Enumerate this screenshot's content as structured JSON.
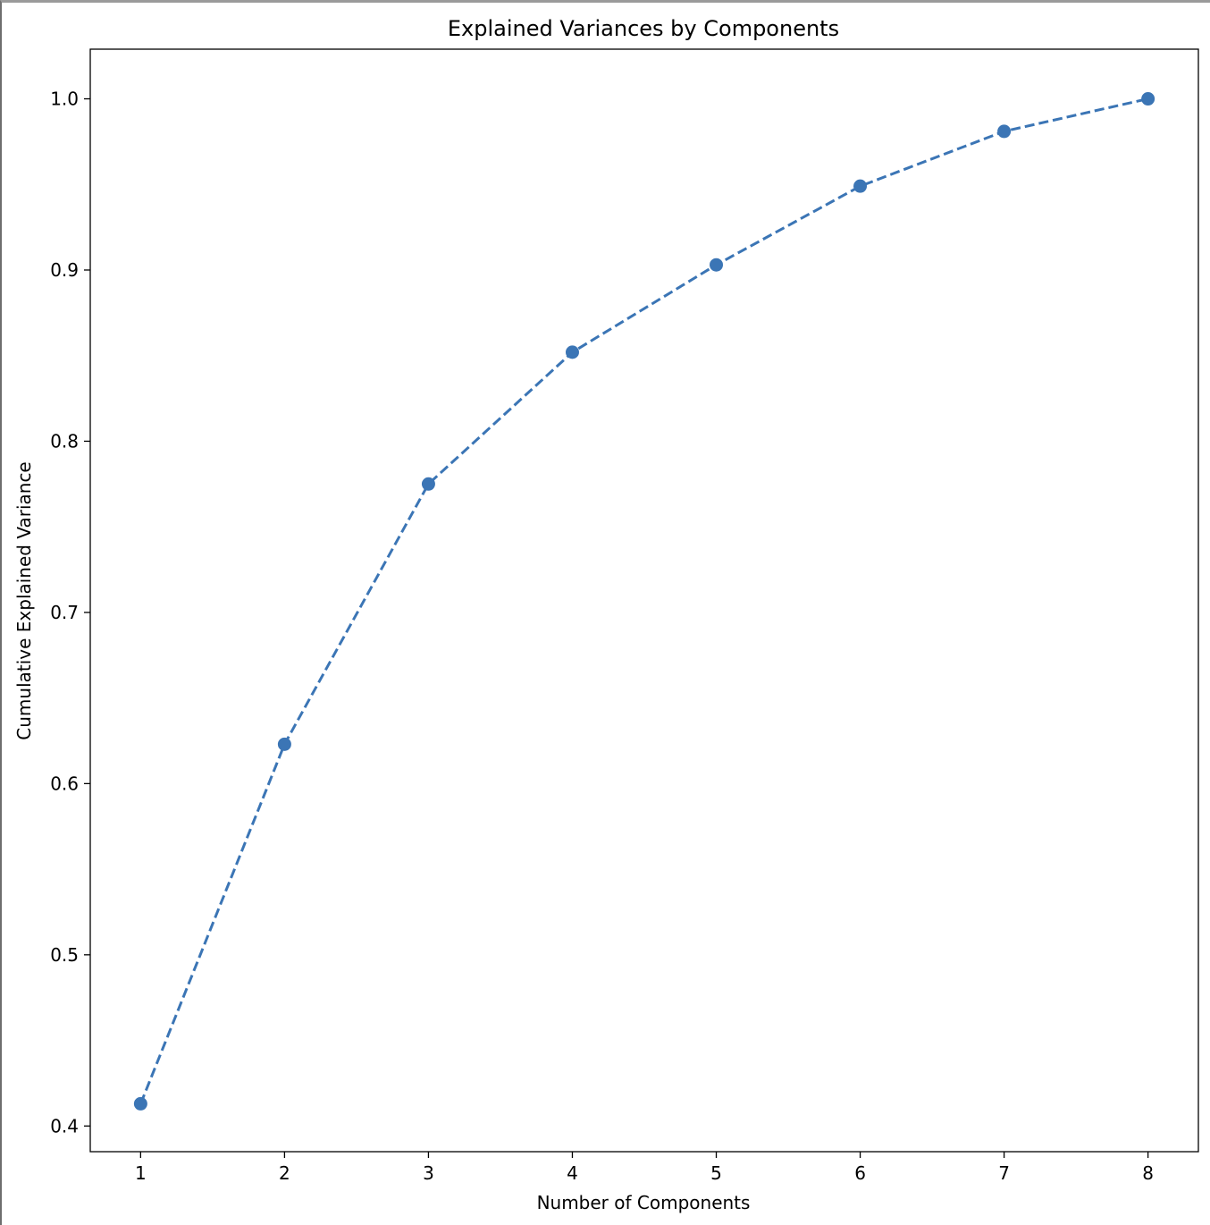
{
  "chart_data": {
    "type": "line",
    "title": "Explained Variances by Components",
    "xlabel": "Number of Components",
    "ylabel": "Cumulative Explained Variance",
    "x": [
      1,
      2,
      3,
      4,
      5,
      6,
      7,
      8
    ],
    "series": [
      {
        "values": [
          0.413,
          0.623,
          0.775,
          0.852,
          0.903,
          0.949,
          0.981,
          1.0
        ],
        "color": "#3b75b5",
        "line_style": "dashed",
        "marker": "circle"
      }
    ],
    "xticks": [
      "1",
      "2",
      "3",
      "4",
      "5",
      "6",
      "7",
      "8"
    ],
    "yticks": [
      "0.4",
      "0.5",
      "0.6",
      "0.7",
      "0.8",
      "0.9",
      "1.0"
    ],
    "ylim": [
      0.385,
      1.029
    ],
    "xlim": [
      0.65,
      8.35
    ],
    "grid": false,
    "legend": false
  }
}
